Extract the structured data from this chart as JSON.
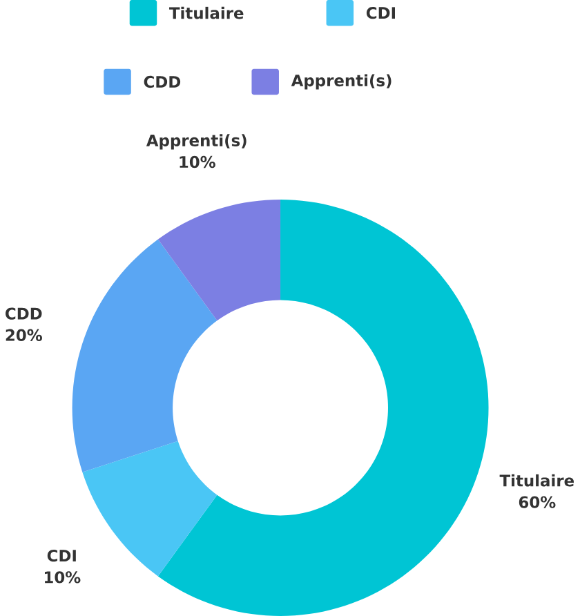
{
  "chart_data": {
    "type": "donut",
    "categories": [
      "Titulaire",
      "CDI",
      "CDD",
      "Apprenti(s)"
    ],
    "values": [
      60,
      10,
      20,
      10
    ],
    "colors": [
      "#00c5d4",
      "#4ac6f5",
      "#5aa6f3",
      "#7c7fe3"
    ],
    "value_labels": [
      "60%",
      "10%",
      "20%",
      "10%"
    ],
    "legend": "top"
  }
}
